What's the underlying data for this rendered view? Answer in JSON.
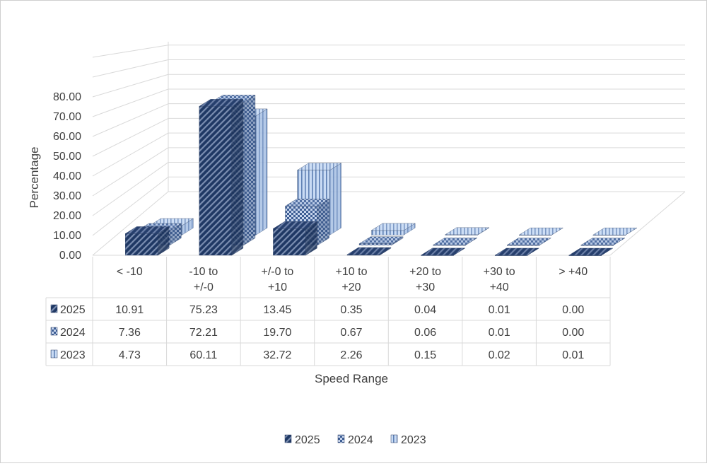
{
  "chart_data": {
    "type": "bar",
    "variant": "3d-column-with-data-table",
    "title": "",
    "xlabel": "Speed Range",
    "ylabel": "Percentage",
    "ylim": [
      0,
      80
    ],
    "ytick_labels": [
      "0.00",
      "10.00",
      "20.00",
      "30.00",
      "40.00",
      "50.00",
      "60.00",
      "70.00",
      "80.00"
    ],
    "categories": [
      [
        "< -10"
      ],
      [
        "-10 to",
        "+/-0"
      ],
      [
        "+/-0 to",
        "+10"
      ],
      [
        "+10 to",
        "+20"
      ],
      [
        "+20 to",
        "+30"
      ],
      [
        "+30 to",
        "+40"
      ],
      [
        "> +40"
      ]
    ],
    "series": [
      {
        "name": "2025",
        "values": [
          10.91,
          75.23,
          13.45,
          0.35,
          0.04,
          0.01,
          0.0
        ],
        "labels": [
          "10.91",
          "75.23",
          "13.45",
          "0.35",
          "0.04",
          "0.01",
          "0.00"
        ],
        "color": "#1f3864",
        "pattern": "diagonal-stripes"
      },
      {
        "name": "2024",
        "values": [
          7.36,
          72.21,
          19.7,
          0.67,
          0.06,
          0.01,
          0.0
        ],
        "labels": [
          "7.36",
          "72.21",
          "19.70",
          "0.67",
          "0.06",
          "0.01",
          "0.00"
        ],
        "color": "#4a6ea8",
        "pattern": "checkerboard"
      },
      {
        "name": "2023",
        "values": [
          4.73,
          60.11,
          32.72,
          2.26,
          0.15,
          0.02,
          0.01
        ],
        "labels": [
          "4.73",
          "60.11",
          "32.72",
          "2.26",
          "0.15",
          "0.02",
          "0.01"
        ],
        "color": "#a9c4ea",
        "pattern": "vertical-stripes"
      }
    ],
    "grid": true,
    "legend": "bottom"
  }
}
